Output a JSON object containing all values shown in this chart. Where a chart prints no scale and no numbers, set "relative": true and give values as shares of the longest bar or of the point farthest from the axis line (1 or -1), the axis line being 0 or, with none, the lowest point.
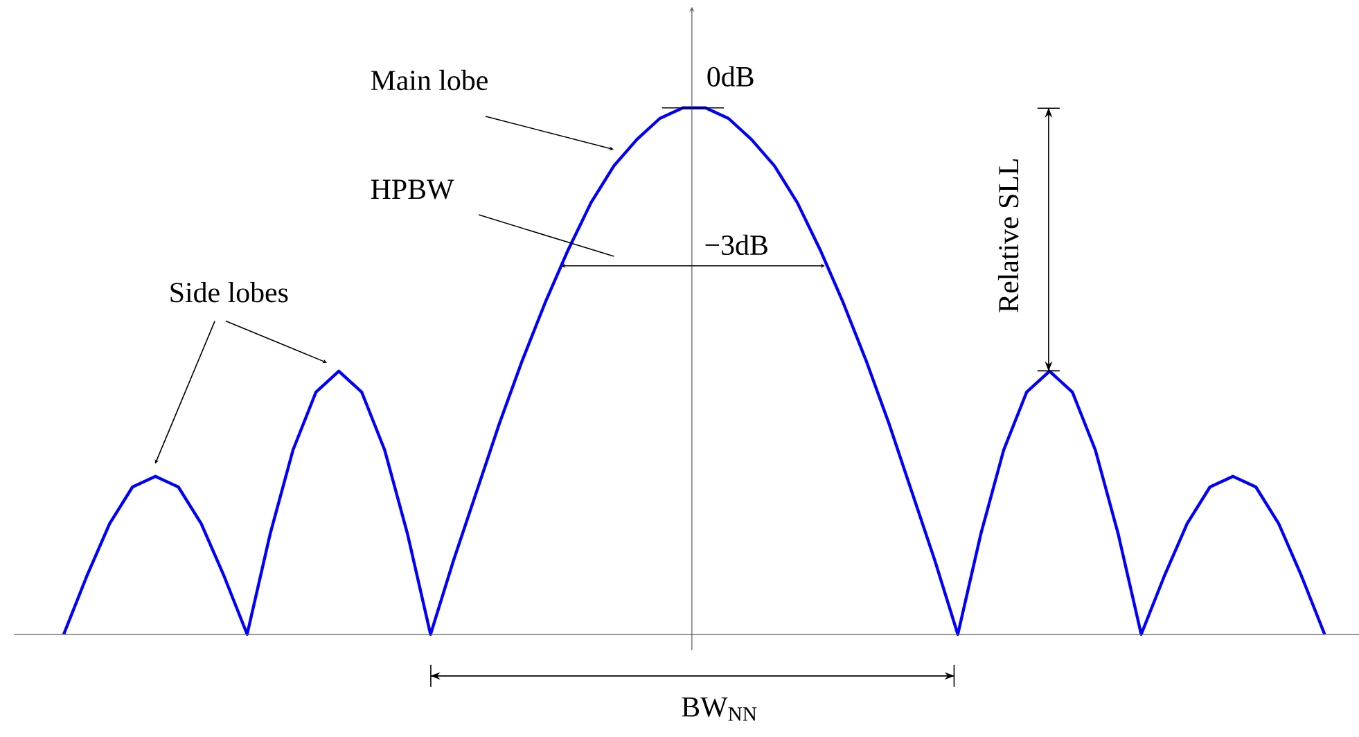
{
  "chart_data": {
    "type": "line",
    "relative": true,
    "categories": [
      null,
      null,
      null,
      null,
      null,
      null,
      null,
      null,
      null,
      null,
      null,
      null,
      null,
      null,
      null,
      null,
      null,
      null,
      null,
      null,
      null,
      null,
      null,
      null,
      null,
      null,
      null,
      null,
      null,
      null,
      null,
      null,
      null,
      null,
      null,
      null,
      null,
      null,
      null,
      null,
      null,
      null,
      null,
      null,
      null,
      null,
      null,
      null,
      null,
      null,
      null,
      null,
      null,
      null,
      null,
      null
    ],
    "series": [
      {
        "color": "#0000ff",
        "values": [
          0,
          0.11,
          0.21,
          0.28,
          0.3,
          0.28,
          0.21,
          0.11,
          0,
          0.19,
          0.35,
          0.46,
          0.5,
          0.46,
          0.35,
          0.19,
          0,
          0.14,
          0.27,
          0.4,
          0.52,
          0.63,
          0.73,
          0.82,
          0.89,
          0.94,
          0.98,
          1,
          1,
          0.98,
          0.94,
          0.89,
          0.82,
          0.73,
          0.63,
          0.52,
          0.4,
          0.27,
          0.14,
          0,
          0.19,
          0.35,
          0.46,
          0.5,
          0.46,
          0.35,
          0.19,
          0,
          0.11,
          0.21,
          0.28,
          0.3,
          0.28,
          0.21,
          0.11,
          0
        ]
      }
    ],
    "annotations": [
      "Main lobe",
      "HPBW",
      "Side lobes",
      "0dB",
      "−3dB",
      "Relative SLL",
      "BW$_{NN}$"
    ]
  }
}
